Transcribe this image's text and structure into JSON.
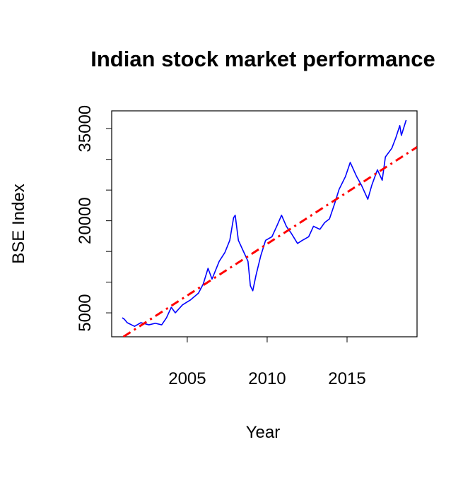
{
  "chart_data": {
    "type": "line",
    "title": "Indian stock market performance",
    "x_label": "Year",
    "y_label": "BSE Index",
    "xlim": [
      2000.27,
      2019.38
    ],
    "xticks": [
      2005,
      2010,
      2015
    ],
    "ylim": [
      1100,
      37900
    ],
    "yticks": [
      5000,
      {
        "value": 10000,
        "label": null
      },
      {
        "value": 15000,
        "label": null
      },
      20000,
      {
        "value": 25000,
        "label": null
      },
      {
        "value": 30000,
        "label": null
      },
      35000
    ],
    "series": [
      {
        "color": "#0000ff",
        "x": [
          2000.93,
          2001.06,
          2001.24,
          2001.7,
          2002.1,
          2002.6,
          2003.0,
          2003.4,
          2003.7,
          2004.0,
          2004.25,
          2004.7,
          2005.2,
          2005.7,
          2006.0,
          2006.3,
          2006.55,
          2007.0,
          2007.35,
          2007.66,
          2007.9,
          2008.0,
          2008.2,
          2008.5,
          2008.8,
          2008.95,
          2009.1,
          2009.3,
          2009.6,
          2009.9,
          2010.3,
          2010.6,
          2010.9,
          2011.2,
          2011.5,
          2011.9,
          2012.2,
          2012.6,
          2012.9,
          2013.3,
          2013.6,
          2013.9,
          2014.2,
          2014.5,
          2014.9,
          2015.2,
          2015.6,
          2015.9,
          2016.3,
          2016.55,
          2016.9,
          2017.2,
          2017.4,
          2017.8,
          2018.05,
          2018.3,
          2018.4,
          2018.7
        ],
        "values": [
          4200,
          3970,
          3400,
          2800,
          3400,
          3050,
          3300,
          3050,
          4200,
          5900,
          5000,
          6300,
          7100,
          8200,
          9700,
          12250,
          10500,
          13400,
          14800,
          16800,
          20500,
          20900,
          16800,
          15100,
          13400,
          9400,
          8600,
          11100,
          14300,
          16800,
          17400,
          19100,
          20900,
          19100,
          18000,
          16300,
          16800,
          17400,
          19100,
          18600,
          19700,
          20300,
          22600,
          25100,
          27200,
          29500,
          27200,
          25800,
          23500,
          25800,
          28300,
          26600,
          30400,
          31800,
          33500,
          35500,
          33900,
          36400
        ]
      },
      {
        "color": "#ff0000",
        "style": "dotdash",
        "x": [
          2001.0,
          2019.38
        ],
        "values": [
          1100,
          32000
        ]
      }
    ]
  }
}
